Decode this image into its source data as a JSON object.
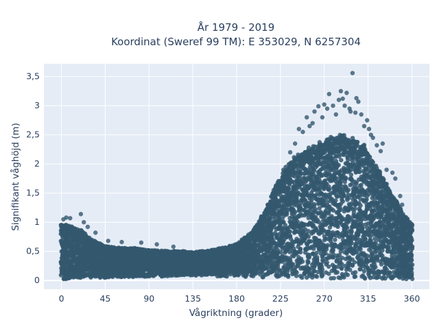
{
  "chart_data": {
    "type": "scatter",
    "title": [
      "År 1979 - 2019",
      "Koordinat (Sweref 99 TM): E 353029, N 6257304"
    ],
    "xlabel": "Vågriktning (grader)",
    "ylabel": "Signifikant våghöjd (m)",
    "xlim": [
      -18,
      378
    ],
    "ylim": [
      -0.15,
      3.72
    ],
    "x_ticks": [
      0,
      45,
      90,
      135,
      180,
      225,
      270,
      315,
      360
    ],
    "x_tick_labels": [
      "0",
      "45",
      "90",
      "135",
      "180",
      "225",
      "270",
      "315",
      "360"
    ],
    "y_ticks": [
      0,
      0.5,
      1,
      1.5,
      2,
      2.5,
      3,
      3.5
    ],
    "y_tick_labels": [
      "0",
      "0,5",
      "1",
      "1,5",
      "2",
      "2,5",
      "3",
      "3,5"
    ],
    "grid": true,
    "colors": {
      "marker": "#34586f",
      "plot_background": "#e5ecf6",
      "grid": "#ffffff",
      "text": "#2a3f5f"
    },
    "envelope": {
      "x": [
        0,
        10,
        20,
        30,
        45,
        60,
        75,
        90,
        105,
        120,
        135,
        150,
        165,
        180,
        195,
        210,
        220,
        230,
        240,
        250,
        260,
        270,
        280,
        290,
        300,
        310,
        320,
        330,
        340,
        350,
        360
      ],
      "upper": [
        0.95,
        0.92,
        0.85,
        0.7,
        0.58,
        0.55,
        0.55,
        0.52,
        0.5,
        0.5,
        0.48,
        0.5,
        0.55,
        0.62,
        0.8,
        1.2,
        1.6,
        1.9,
        2.1,
        2.2,
        2.3,
        2.35,
        2.45,
        2.45,
        2.4,
        2.3,
        2.0,
        1.75,
        1.45,
        1.15,
        0.95
      ],
      "lower": [
        0.02,
        0.02,
        0.03,
        0.04,
        0.05,
        0.06,
        0.06,
        0.07,
        0.07,
        0.08,
        0.08,
        0.08,
        0.07,
        0.07,
        0.06,
        0.05,
        0.05,
        0.04,
        0.04,
        0.03,
        0.03,
        0.03,
        0.03,
        0.03,
        0.03,
        0.03,
        0.03,
        0.03,
        0.03,
        0.02,
        0.02
      ]
    },
    "outliers": [
      [
        2,
        1.05
      ],
      [
        5,
        1.08
      ],
      [
        9,
        1.07
      ],
      [
        20,
        1.14
      ],
      [
        23,
        1.0
      ],
      [
        27,
        0.92
      ],
      [
        35,
        0.82
      ],
      [
        48,
        0.68
      ],
      [
        62,
        0.66
      ],
      [
        82,
        0.65
      ],
      [
        98,
        0.62
      ],
      [
        115,
        0.58
      ],
      [
        212,
        1.3
      ],
      [
        218,
        1.55
      ],
      [
        228,
        1.9
      ],
      [
        235,
        2.2
      ],
      [
        240,
        2.35
      ],
      [
        244,
        2.6
      ],
      [
        248,
        2.55
      ],
      [
        252,
        2.8
      ],
      [
        255,
        2.65
      ],
      [
        258,
        2.7
      ],
      [
        260,
        2.9
      ],
      [
        264,
        2.99
      ],
      [
        268,
        2.8
      ],
      [
        270,
        3.02
      ],
      [
        273,
        2.95
      ],
      [
        275,
        3.2
      ],
      [
        279,
        3.0
      ],
      [
        282,
        2.85
      ],
      [
        285,
        3.1
      ],
      [
        287,
        3.25
      ],
      [
        289,
        3.12
      ],
      [
        291,
        3.0
      ],
      [
        293,
        3.22
      ],
      [
        296,
        2.95
      ],
      [
        297,
        2.9
      ],
      [
        299,
        3.56
      ],
      [
        302,
        2.88
      ],
      [
        303,
        3.13
      ],
      [
        305,
        3.07
      ],
      [
        308,
        2.85
      ],
      [
        311,
        2.65
      ],
      [
        314,
        2.75
      ],
      [
        316,
        2.6
      ],
      [
        318,
        2.5
      ],
      [
        320,
        2.45
      ],
      [
        324,
        2.32
      ],
      [
        328,
        2.22
      ],
      [
        330,
        2.35
      ],
      [
        334,
        1.9
      ],
      [
        340,
        1.85
      ],
      [
        343,
        1.75
      ],
      [
        348,
        1.45
      ],
      [
        350,
        1.3
      ],
      [
        355,
        1.05
      ],
      [
        358,
        1.0
      ]
    ]
  }
}
